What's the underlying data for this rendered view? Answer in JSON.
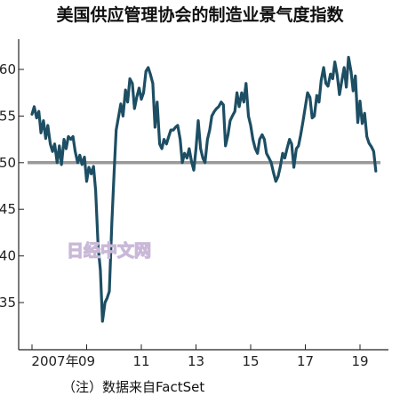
{
  "chart_data": {
    "type": "line",
    "title": "美国供应管理协会的制造业景气度指数",
    "xlabel": "",
    "ylabel": "",
    "xlim": [
      2006.8,
      2019.85
    ],
    "ylim": [
      32,
      65
    ],
    "y_ticks": [
      35,
      40,
      45,
      50,
      55,
      60
    ],
    "x_ticks": [
      {
        "value": 2007,
        "label": "2007年"
      },
      {
        "value": 2009,
        "label": "09"
      },
      {
        "value": 2011,
        "label": "11"
      },
      {
        "value": 2013,
        "label": "13"
      },
      {
        "value": 2015,
        "label": "15"
      },
      {
        "value": 2017,
        "label": "17"
      },
      {
        "value": 2019,
        "label": "19"
      }
    ],
    "reference_line": {
      "value": 50
    },
    "series": [
      {
        "color": "#1d4e63",
        "points": [
          [
            2007.0,
            55.2
          ],
          [
            2007.08,
            56.0
          ],
          [
            2007.17,
            54.8
          ],
          [
            2007.25,
            55.5
          ],
          [
            2007.33,
            53.2
          ],
          [
            2007.42,
            54.5
          ],
          [
            2007.5,
            52.6
          ],
          [
            2007.58,
            54.0
          ],
          [
            2007.67,
            52.0
          ],
          [
            2007.75,
            51.2
          ],
          [
            2007.83,
            52.0
          ],
          [
            2007.92,
            50.0
          ],
          [
            2008.0,
            51.8
          ],
          [
            2008.08,
            49.8
          ],
          [
            2008.17,
            52.5
          ],
          [
            2008.25,
            51.5
          ],
          [
            2008.33,
            52.8
          ],
          [
            2008.42,
            52.5
          ],
          [
            2008.5,
            52.8
          ],
          [
            2008.58,
            51.2
          ],
          [
            2008.67,
            50.0
          ],
          [
            2008.75,
            50.8
          ],
          [
            2008.83,
            49.8
          ],
          [
            2008.92,
            50.6
          ],
          [
            2009.0,
            48.0
          ],
          [
            2009.08,
            49.5
          ],
          [
            2009.17,
            48.8
          ],
          [
            2009.25,
            49.6
          ],
          [
            2009.33,
            47.0
          ],
          [
            2009.42,
            41.0
          ],
          [
            2009.5,
            38.5
          ],
          [
            2009.58,
            33.0
          ],
          [
            2009.67,
            35.0
          ],
          [
            2009.75,
            35.5
          ],
          [
            2009.83,
            36.2
          ],
          [
            2009.92,
            43.5
          ],
          [
            2010.0,
            48.8
          ],
          [
            2010.08,
            53.5
          ],
          [
            2010.17,
            55.0
          ],
          [
            2010.25,
            56.3
          ],
          [
            2010.33,
            55.0
          ],
          [
            2010.42,
            57.8
          ],
          [
            2010.5,
            56.5
          ],
          [
            2010.58,
            59.0
          ],
          [
            2010.67,
            58.5
          ],
          [
            2010.75,
            55.8
          ],
          [
            2010.83,
            57.0
          ],
          [
            2010.92,
            58.0
          ],
          [
            2011.0,
            56.8
          ],
          [
            2011.08,
            57.5
          ],
          [
            2011.17,
            59.8
          ],
          [
            2011.25,
            60.2
          ],
          [
            2011.33,
            59.5
          ],
          [
            2011.42,
            58.5
          ],
          [
            2011.5,
            53.8
          ],
          [
            2011.58,
            56.5
          ],
          [
            2011.67,
            52.0
          ],
          [
            2011.75,
            51.5
          ],
          [
            2011.83,
            52.5
          ],
          [
            2011.92,
            52.0
          ],
          [
            2012.0,
            52.8
          ],
          [
            2012.08,
            53.5
          ],
          [
            2012.17,
            53.5
          ],
          [
            2012.25,
            53.8
          ],
          [
            2012.33,
            54.0
          ],
          [
            2012.42,
            52.5
          ],
          [
            2012.5,
            50.0
          ],
          [
            2012.58,
            51.0
          ],
          [
            2012.67,
            50.5
          ],
          [
            2012.75,
            51.5
          ],
          [
            2012.83,
            50.2
          ],
          [
            2012.92,
            49.2
          ],
          [
            2013.0,
            51.5
          ],
          [
            2013.08,
            54.5
          ],
          [
            2013.17,
            51.5
          ],
          [
            2013.25,
            50.5
          ],
          [
            2013.33,
            50.0
          ],
          [
            2013.42,
            52.5
          ],
          [
            2013.5,
            53.5
          ],
          [
            2013.58,
            55.0
          ],
          [
            2013.67,
            55.5
          ],
          [
            2013.75,
            55.8
          ],
          [
            2013.83,
            56.0
          ],
          [
            2013.92,
            56.5
          ],
          [
            2014.0,
            56.2
          ],
          [
            2014.08,
            51.8
          ],
          [
            2014.17,
            53.0
          ],
          [
            2014.25,
            54.5
          ],
          [
            2014.33,
            55.0
          ],
          [
            2014.42,
            55.5
          ],
          [
            2014.5,
            57.5
          ],
          [
            2014.58,
            56.0
          ],
          [
            2014.67,
            57.5
          ],
          [
            2014.75,
            56.5
          ],
          [
            2014.83,
            58.5
          ],
          [
            2014.92,
            55.0
          ],
          [
            2015.0,
            54.0
          ],
          [
            2015.08,
            52.5
          ],
          [
            2015.17,
            51.5
          ],
          [
            2015.25,
            51.0
          ],
          [
            2015.33,
            52.5
          ],
          [
            2015.42,
            53.0
          ],
          [
            2015.5,
            52.5
          ],
          [
            2015.58,
            51.0
          ],
          [
            2015.67,
            50.5
          ],
          [
            2015.75,
            50.0
          ],
          [
            2015.83,
            49.0
          ],
          [
            2015.92,
            48.0
          ],
          [
            2016.0,
            48.5
          ],
          [
            2016.08,
            49.5
          ],
          [
            2016.17,
            51.0
          ],
          [
            2016.25,
            50.5
          ],
          [
            2016.33,
            51.5
          ],
          [
            2016.42,
            52.5
          ],
          [
            2016.5,
            52.0
          ],
          [
            2016.58,
            49.5
          ],
          [
            2016.67,
            51.5
          ],
          [
            2016.75,
            51.8
          ],
          [
            2016.83,
            53.0
          ],
          [
            2016.92,
            54.5
          ],
          [
            2017.0,
            56.0
          ],
          [
            2017.08,
            57.5
          ],
          [
            2017.17,
            57.0
          ],
          [
            2017.25,
            54.8
          ],
          [
            2017.33,
            55.0
          ],
          [
            2017.42,
            57.2
          ],
          [
            2017.5,
            56.5
          ],
          [
            2017.58,
            58.8
          ],
          [
            2017.67,
            60.2
          ],
          [
            2017.75,
            58.5
          ],
          [
            2017.83,
            58.2
          ],
          [
            2017.92,
            59.5
          ],
          [
            2018.0,
            59.0
          ],
          [
            2018.08,
            60.8
          ],
          [
            2018.17,
            59.3
          ],
          [
            2018.25,
            57.3
          ],
          [
            2018.33,
            58.7
          ],
          [
            2018.42,
            60.2
          ],
          [
            2018.5,
            58.1
          ],
          [
            2018.58,
            61.3
          ],
          [
            2018.67,
            59.8
          ],
          [
            2018.75,
            57.7
          ],
          [
            2018.83,
            59.3
          ],
          [
            2018.92,
            54.3
          ],
          [
            2019.0,
            56.6
          ],
          [
            2019.08,
            54.2
          ],
          [
            2019.17,
            55.3
          ],
          [
            2019.25,
            52.8
          ],
          [
            2019.33,
            52.1
          ],
          [
            2019.42,
            51.7
          ],
          [
            2019.5,
            51.2
          ],
          [
            2019.58,
            49.1
          ]
        ]
      }
    ],
    "reference_color": "#999999"
  },
  "watermark": "日经中文网",
  "source_note": "（注）数据来自FactSet"
}
